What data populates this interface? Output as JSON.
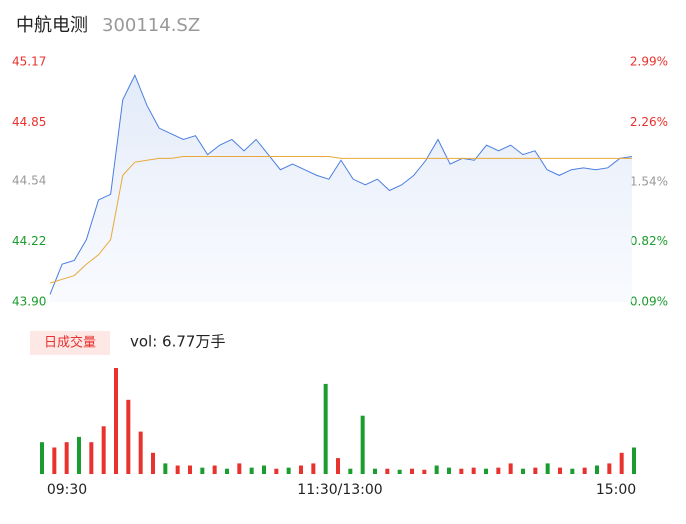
{
  "chart_data": [
    {
      "type": "line",
      "title": "中航电测",
      "subtitle": "300114.SZ",
      "xlim": [
        0,
        240
      ],
      "x": [
        0,
        5,
        10,
        15,
        20,
        25,
        30,
        35,
        40,
        45,
        50,
        55,
        60,
        65,
        70,
        75,
        80,
        85,
        90,
        95,
        100,
        105,
        110,
        115,
        120,
        125,
        130,
        135,
        140,
        145,
        150,
        155,
        160,
        165,
        170,
        175,
        180,
        185,
        190,
        195,
        200,
        205,
        210,
        215,
        220,
        225,
        230,
        235,
        240
      ],
      "series": [
        {
          "color": "#4a7ee0",
          "values": [
            43.94,
            44.1,
            44.12,
            44.23,
            44.44,
            44.47,
            44.97,
            45.1,
            44.94,
            44.82,
            44.79,
            44.76,
            44.78,
            44.68,
            44.73,
            44.76,
            44.7,
            44.76,
            44.68,
            44.6,
            44.63,
            44.6,
            44.57,
            44.55,
            44.65,
            44.55,
            44.52,
            44.55,
            44.49,
            44.52,
            44.57,
            44.65,
            44.76,
            44.63,
            44.66,
            44.65,
            44.73,
            44.7,
            44.73,
            44.68,
            44.7,
            44.6,
            44.57,
            44.6,
            44.61,
            44.6,
            44.61,
            44.66,
            44.67
          ]
        },
        {
          "color": "#e8a93a",
          "values": [
            44.0,
            44.02,
            44.04,
            44.1,
            44.15,
            44.23,
            44.57,
            44.64,
            44.65,
            44.66,
            44.66,
            44.67,
            44.67,
            44.67,
            44.67,
            44.67,
            44.67,
            44.67,
            44.67,
            44.67,
            44.67,
            44.67,
            44.67,
            44.67,
            44.66,
            44.66,
            44.66,
            44.66,
            44.66,
            44.66,
            44.66,
            44.66,
            44.66,
            44.66,
            44.66,
            44.66,
            44.66,
            44.66,
            44.66,
            44.66,
            44.66,
            44.66,
            44.66,
            44.66,
            44.66,
            44.66,
            44.66,
            44.66,
            44.66
          ]
        }
      ],
      "ylim": [
        43.9,
        45.17
      ],
      "yticks": [
        45.17,
        44.85,
        44.54,
        44.22,
        {
          "value": 43.9,
          "label": "43.90"
        }
      ],
      "y2lim": [
        0.09,
        2.99
      ],
      "y2ticks": [
        {
          "value": 2.99,
          "label": "2.99%"
        },
        {
          "value": 2.26,
          "label": "2.26%"
        },
        {
          "value": 1.54,
          "label": "1.54%"
        },
        {
          "value": 0.82,
          "label": "0.82%"
        },
        {
          "value": 0.09,
          "label": "0.09%"
        }
      ]
    },
    {
      "type": "bar",
      "tab": "日成交量",
      "label": "vol: 6.77万手",
      "xlim": [
        0,
        240
      ],
      "xticks": [
        {
          "value": 0,
          "label": "09:30"
        },
        {
          "value": 120,
          "label": "11:30/13:00"
        },
        {
          "value": 240,
          "label": "15:00"
        }
      ],
      "x": [
        0,
        5,
        10,
        15,
        20,
        25,
        30,
        35,
        40,
        45,
        50,
        55,
        60,
        65,
        70,
        75,
        80,
        85,
        90,
        95,
        100,
        105,
        110,
        115,
        120,
        125,
        130,
        135,
        140,
        145,
        150,
        155,
        160,
        165,
        170,
        175,
        180,
        185,
        190,
        195,
        200,
        205,
        210,
        215,
        220,
        225,
        230,
        235,
        240
      ],
      "values": [
        30,
        25,
        30,
        35,
        30,
        45,
        100,
        70,
        40,
        20,
        10,
        8,
        8,
        6,
        8,
        5,
        10,
        6,
        8,
        5,
        6,
        8,
        10,
        85,
        15,
        5,
        55,
        5,
        5,
        4,
        5,
        4,
        8,
        6,
        5,
        6,
        5,
        6,
        10,
        5,
        6,
        10,
        6,
        5,
        6,
        8,
        10,
        20,
        25
      ],
      "colors": [
        "#1a9c2e",
        "#e8322e",
        "#e8322e",
        "#1a9c2e",
        "#e8322e",
        "#e8322e",
        "#e8322e",
        "#e8322e",
        "#e8322e",
        "#e8322e",
        "#1a9c2e",
        "#e8322e",
        "#e8322e",
        "#1a9c2e",
        "#e8322e",
        "#1a9c2e",
        "#e8322e",
        "#1a9c2e",
        "#1a9c2e",
        "#e8322e",
        "#1a9c2e",
        "#e8322e",
        "#e8322e",
        "#1a9c2e",
        "#e8322e",
        "#1a9c2e",
        "#1a9c2e",
        "#1a9c2e",
        "#e8322e",
        "#1a9c2e",
        "#e8322e",
        "#e8322e",
        "#1a9c2e",
        "#1a9c2e",
        "#e8322e",
        "#e8322e",
        "#1a9c2e",
        "#e8322e",
        "#e8322e",
        "#1a9c2e",
        "#e8322e",
        "#1a9c2e",
        "#e8322e",
        "#1a9c2e",
        "#e8322e",
        "#1a9c2e",
        "#e8322e",
        "#e8322e",
        "#1a9c2e"
      ],
      "ylim": [
        0,
        100
      ]
    }
  ]
}
